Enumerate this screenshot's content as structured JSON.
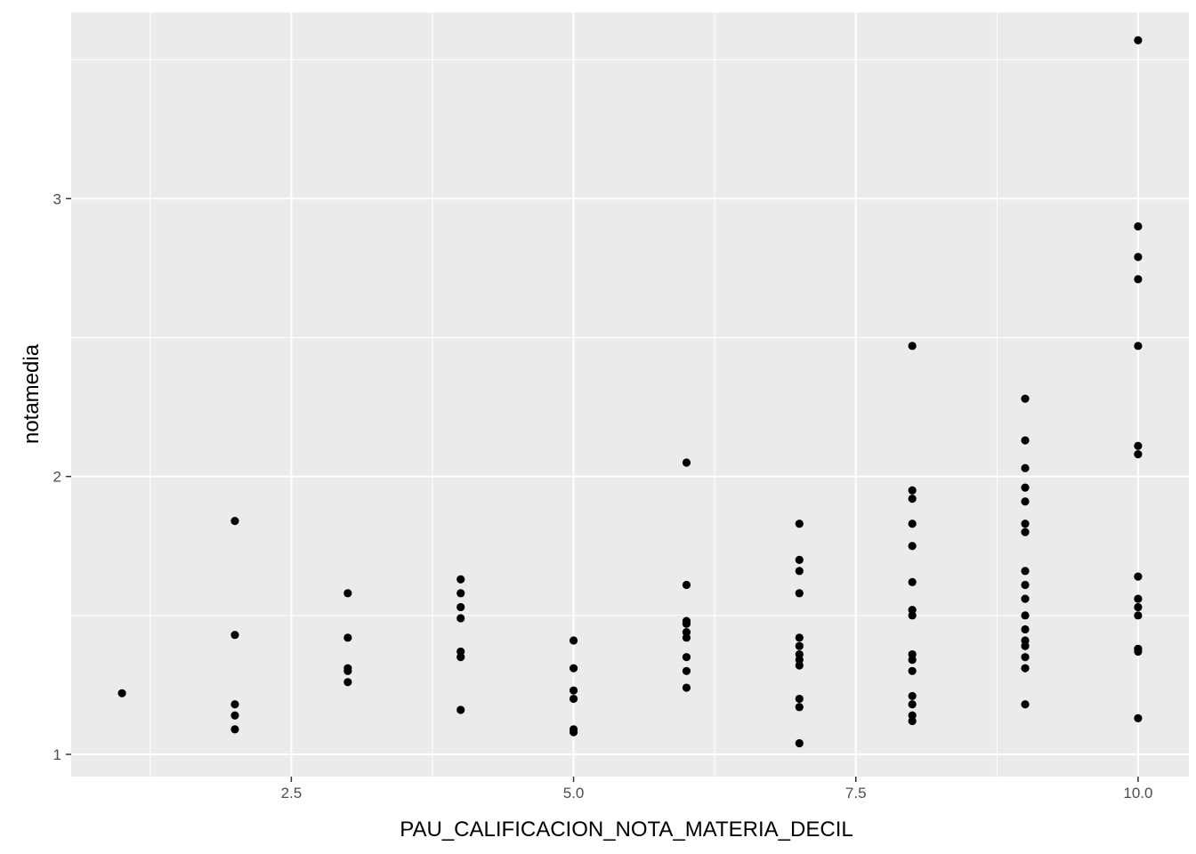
{
  "chart_data": {
    "type": "scatter",
    "xlabel": "PAU_CALIFICACION_NOTA_MATERIA_DECIL",
    "ylabel": "notamedia",
    "xlim": [
      0.55,
      10.45
    ],
    "ylim": [
      0.92,
      3.67
    ],
    "x_ticks": [
      2.5,
      5.0,
      7.5,
      10.0
    ],
    "x_tick_labels": [
      "2.5",
      "5.0",
      "7.5",
      "10.0"
    ],
    "y_ticks": [
      1,
      2,
      3
    ],
    "y_tick_labels": [
      "1",
      "2",
      "3"
    ],
    "grid": true,
    "background_color": "#EBEBEB",
    "grid_color": "#FFFFFF",
    "point_color": "#000000",
    "points": [
      {
        "x": 1,
        "y": 1.22
      },
      {
        "x": 2,
        "y": 1.84
      },
      {
        "x": 2,
        "y": 1.43
      },
      {
        "x": 2,
        "y": 1.18
      },
      {
        "x": 2,
        "y": 1.14
      },
      {
        "x": 2,
        "y": 1.09
      },
      {
        "x": 3,
        "y": 1.58
      },
      {
        "x": 3,
        "y": 1.42
      },
      {
        "x": 3,
        "y": 1.31
      },
      {
        "x": 3,
        "y": 1.3
      },
      {
        "x": 3,
        "y": 1.26
      },
      {
        "x": 4,
        "y": 1.63
      },
      {
        "x": 4,
        "y": 1.58
      },
      {
        "x": 4,
        "y": 1.53
      },
      {
        "x": 4,
        "y": 1.49
      },
      {
        "x": 4,
        "y": 1.37
      },
      {
        "x": 4,
        "y": 1.35
      },
      {
        "x": 4,
        "y": 1.16
      },
      {
        "x": 5,
        "y": 1.41
      },
      {
        "x": 5,
        "y": 1.31
      },
      {
        "x": 5,
        "y": 1.23
      },
      {
        "x": 5,
        "y": 1.2
      },
      {
        "x": 5,
        "y": 1.09
      },
      {
        "x": 5,
        "y": 1.08
      },
      {
        "x": 6,
        "y": 2.05
      },
      {
        "x": 6,
        "y": 1.61
      },
      {
        "x": 6,
        "y": 1.48
      },
      {
        "x": 6,
        "y": 1.47
      },
      {
        "x": 6,
        "y": 1.44
      },
      {
        "x": 6,
        "y": 1.42
      },
      {
        "x": 6,
        "y": 1.35
      },
      {
        "x": 6,
        "y": 1.3
      },
      {
        "x": 6,
        "y": 1.24
      },
      {
        "x": 7,
        "y": 1.83
      },
      {
        "x": 7,
        "y": 1.7
      },
      {
        "x": 7,
        "y": 1.66
      },
      {
        "x": 7,
        "y": 1.58
      },
      {
        "x": 7,
        "y": 1.42
      },
      {
        "x": 7,
        "y": 1.39
      },
      {
        "x": 7,
        "y": 1.36
      },
      {
        "x": 7,
        "y": 1.34
      },
      {
        "x": 7,
        "y": 1.32
      },
      {
        "x": 7,
        "y": 1.2
      },
      {
        "x": 7,
        "y": 1.17
      },
      {
        "x": 7,
        "y": 1.04
      },
      {
        "x": 8,
        "y": 2.47
      },
      {
        "x": 8,
        "y": 1.95
      },
      {
        "x": 8,
        "y": 1.92
      },
      {
        "x": 8,
        "y": 1.83
      },
      {
        "x": 8,
        "y": 1.75
      },
      {
        "x": 8,
        "y": 1.62
      },
      {
        "x": 8,
        "y": 1.52
      },
      {
        "x": 8,
        "y": 1.5
      },
      {
        "x": 8,
        "y": 1.36
      },
      {
        "x": 8,
        "y": 1.34
      },
      {
        "x": 8,
        "y": 1.3
      },
      {
        "x": 8,
        "y": 1.21
      },
      {
        "x": 8,
        "y": 1.18
      },
      {
        "x": 8,
        "y": 1.14
      },
      {
        "x": 8,
        "y": 1.12
      },
      {
        "x": 9,
        "y": 2.28
      },
      {
        "x": 9,
        "y": 2.13
      },
      {
        "x": 9,
        "y": 2.03
      },
      {
        "x": 9,
        "y": 1.96
      },
      {
        "x": 9,
        "y": 1.91
      },
      {
        "x": 9,
        "y": 1.83
      },
      {
        "x": 9,
        "y": 1.8
      },
      {
        "x": 9,
        "y": 1.66
      },
      {
        "x": 9,
        "y": 1.61
      },
      {
        "x": 9,
        "y": 1.56
      },
      {
        "x": 9,
        "y": 1.5
      },
      {
        "x": 9,
        "y": 1.45
      },
      {
        "x": 9,
        "y": 1.41
      },
      {
        "x": 9,
        "y": 1.39
      },
      {
        "x": 9,
        "y": 1.35
      },
      {
        "x": 9,
        "y": 1.31
      },
      {
        "x": 9,
        "y": 1.18
      },
      {
        "x": 10,
        "y": 3.57
      },
      {
        "x": 10,
        "y": 2.9
      },
      {
        "x": 10,
        "y": 2.79
      },
      {
        "x": 10,
        "y": 2.71
      },
      {
        "x": 10,
        "y": 2.47
      },
      {
        "x": 10,
        "y": 2.11
      },
      {
        "x": 10,
        "y": 2.08
      },
      {
        "x": 10,
        "y": 1.64
      },
      {
        "x": 10,
        "y": 1.56
      },
      {
        "x": 10,
        "y": 1.53
      },
      {
        "x": 10,
        "y": 1.5
      },
      {
        "x": 10,
        "y": 1.38
      },
      {
        "x": 10,
        "y": 1.37
      },
      {
        "x": 10,
        "y": 1.13
      }
    ]
  }
}
